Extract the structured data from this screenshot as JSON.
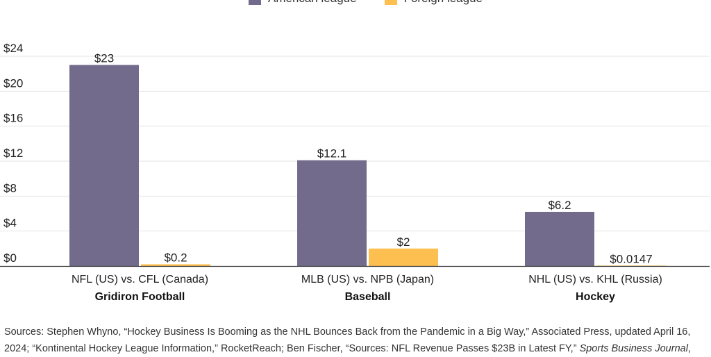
{
  "chart_data": {
    "type": "bar",
    "title": "",
    "ylabel": "",
    "xlabel": "",
    "ylim": [
      0,
      24
    ],
    "yticks": [
      0,
      4,
      8,
      12,
      16,
      20,
      24
    ],
    "ytick_labels": [
      "$0",
      "$4",
      "$8",
      "$12",
      "$16",
      "$20",
      "$24"
    ],
    "grid": true,
    "legend_position": "top",
    "categories": [
      "NFL (US) vs. CFL (Canada)",
      "MLB (US) vs. NPB (Japan)",
      "NHL (US) vs. KHL (Russia)"
    ],
    "category_groups": [
      "Gridiron Football",
      "Baseball",
      "Hockey"
    ],
    "series": [
      {
        "name": "American league",
        "color": "#736b8c",
        "values": [
          23,
          12.1,
          6.2
        ],
        "labels": [
          "$23",
          "$12.1",
          "$6.2"
        ]
      },
      {
        "name": "Foreign league",
        "color": "#fdbf50",
        "values": [
          0.2,
          2,
          0.0147
        ],
        "labels": [
          "$0.2",
          "$2",
          "$0.0147"
        ]
      }
    ]
  },
  "sources": {
    "line1": "Sources: Stephen Whyno, “Hockey Business Is Booming as the NHL Bounces Back from the Pandemic in a Big Way,” Associated Press, updated April 16,",
    "line2": "2024; “Kontinental Hockey League Information,” RocketReach; Ben Fischer, “Sources: NFL Revenue Passes $23B in Latest FY,”",
    "line2_italic": "Sports Business Journal",
    "line2_end": ","
  }
}
